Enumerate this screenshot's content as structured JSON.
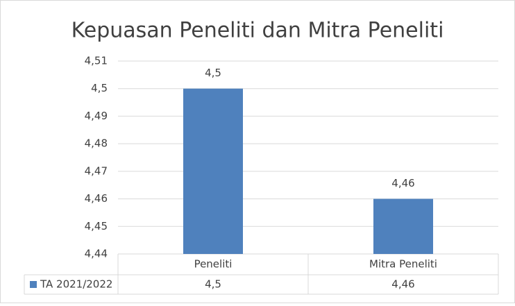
{
  "chart_data": {
    "type": "bar",
    "title": "Kepuasan Peneliti dan Mitra Peneliti",
    "categories": [
      "Peneliti",
      "Mitra Peneliti"
    ],
    "series": [
      {
        "name": "TA 2021/2022",
        "color": "#4f81bd",
        "values": [
          4.5,
          4.46
        ],
        "value_labels": [
          "4,5",
          "4,46"
        ]
      }
    ],
    "ylim": [
      4.44,
      4.51
    ],
    "yticks": [
      {
        "value": 4.44,
        "label": "4,44"
      },
      {
        "value": 4.45,
        "label": "4,45"
      },
      {
        "value": 4.46,
        "label": "4,46"
      },
      {
        "value": 4.47,
        "label": "4,47"
      },
      {
        "value": 4.48,
        "label": "4,48"
      },
      {
        "value": 4.49,
        "label": "4,49"
      },
      {
        "value": 4.5,
        "label": "4,5"
      },
      {
        "value": 4.51,
        "label": "4,51"
      }
    ],
    "grid": true
  }
}
